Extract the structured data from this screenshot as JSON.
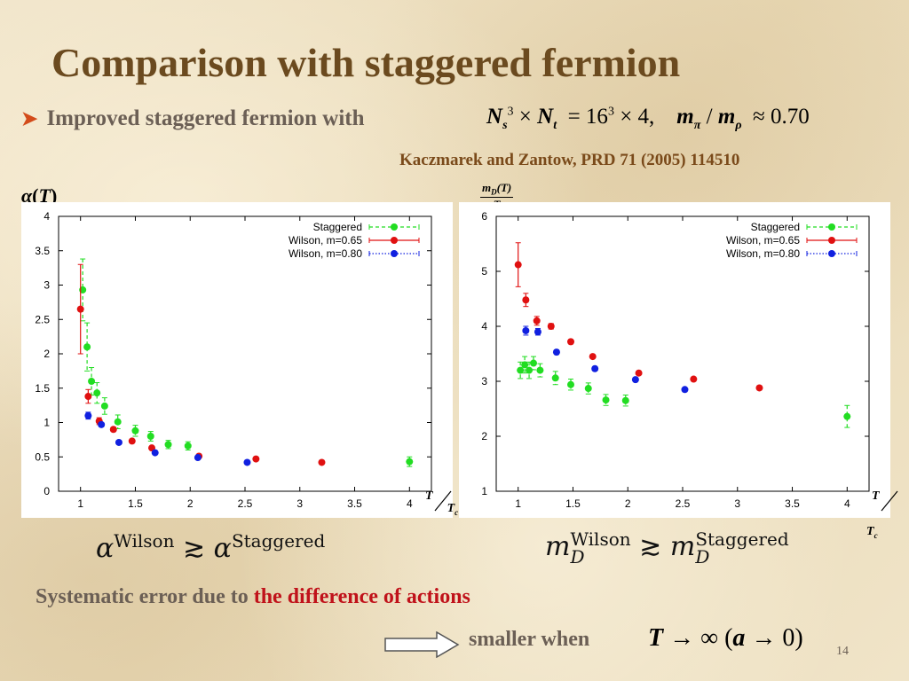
{
  "slide": {
    "title": "Comparison with staggered fermion",
    "bullet": "Improved staggered fermion with",
    "formula": "N_s^3 × N_t = 16^3 × 4,  m_π / m_ρ ≈ 0.70",
    "reference": "Kaczmarek and Zantow, PRD 71 (2005) 114510",
    "left_ylabel": "α(T)",
    "right_ylabel_num": "m_D(T)",
    "right_ylabel_den": "T",
    "xlabel_num": "T",
    "xlabel_den": "T_c",
    "inequality_left": "α^Wilson ≳ α^Staggered",
    "inequality_right": "m_D^Wilson ≳ m_D^Staggered",
    "systematic_prefix": "Systematic error due to",
    "systematic_highlight": "the difference of  actions",
    "smaller_when": "smaller when",
    "limit_expr": "T → ∞ (a → 0)",
    "page_number": "14",
    "colors": {
      "title": "#6b4a1f",
      "highlight": "#c0121a",
      "staggered": "#22dd22",
      "wilson065": "#e01010",
      "wilson080": "#1020e0"
    }
  },
  "chart_data": [
    {
      "type": "scatter",
      "title": "",
      "xlabel": "T/Tc",
      "ylabel": "α(T)",
      "xlim": [
        0.8,
        4.2
      ],
      "ylim": [
        0,
        4
      ],
      "xticks": [
        1,
        1.5,
        2,
        2.5,
        3,
        3.5,
        4
      ],
      "xtick_labels": [
        "1",
        "1.5",
        "2",
        "2.5",
        "3",
        "3.5",
        "4"
      ],
      "yticks": [
        0,
        0.5,
        1,
        1.5,
        2,
        2.5,
        3,
        3.5,
        4
      ],
      "ytick_labels": [
        "0",
        "0.5",
        "1",
        "1.5",
        "2",
        "2.5",
        "3",
        "3.5",
        "4"
      ],
      "legend_position": "top-right",
      "series": [
        {
          "name": "Staggered",
          "color": "#22dd22",
          "style": "dashed",
          "x": [
            1.02,
            1.06,
            1.1,
            1.15,
            1.22,
            1.34,
            1.5,
            1.64,
            1.8,
            1.98,
            4.0
          ],
          "y": [
            2.93,
            2.1,
            1.6,
            1.43,
            1.24,
            1.01,
            0.88,
            0.8,
            0.68,
            0.66,
            0.43
          ],
          "err": [
            0.45,
            0.35,
            0.2,
            0.15,
            0.12,
            0.1,
            0.08,
            0.07,
            0.06,
            0.06,
            0.07
          ]
        },
        {
          "name": "Wilson, m=0.65",
          "color": "#e01010",
          "style": "solid",
          "x": [
            1.0,
            1.07,
            1.17,
            1.3,
            1.47,
            1.65,
            2.08,
            2.6,
            3.2
          ],
          "y": [
            2.65,
            1.38,
            1.02,
            0.9,
            0.73,
            0.63,
            0.51,
            0.47,
            0.42
          ],
          "err": [
            0.65,
            0.1,
            0.05,
            0.03,
            0.02,
            0.02,
            0.01,
            0.01,
            0.01
          ]
        },
        {
          "name": "Wilson, m=0.80",
          "color": "#1020e0",
          "style": "dotted",
          "x": [
            1.07,
            1.19,
            1.35,
            1.68,
            2.07,
            2.52
          ],
          "y": [
            1.1,
            0.97,
            0.71,
            0.56,
            0.49,
            0.42
          ],
          "err": [
            0.05,
            0.03,
            0.02,
            0.02,
            0.01,
            0.01
          ]
        }
      ]
    },
    {
      "type": "scatter",
      "title": "",
      "xlabel": "T/Tc",
      "ylabel": "m_D(T)/T",
      "xlim": [
        0.8,
        4.2
      ],
      "ylim": [
        1,
        6
      ],
      "xticks": [
        1,
        1.5,
        2,
        2.5,
        3,
        3.5,
        4
      ],
      "xtick_labels": [
        "1",
        "1.5",
        "2",
        "2.5",
        "3",
        "3.5",
        "4"
      ],
      "yticks": [
        1,
        2,
        3,
        4,
        5,
        6
      ],
      "ytick_labels": [
        "1",
        "2",
        "3",
        "4",
        "5",
        "6"
      ],
      "legend_position": "top-right",
      "series": [
        {
          "name": "Staggered",
          "color": "#22dd22",
          "style": "dashed",
          "x": [
            1.02,
            1.06,
            1.1,
            1.14,
            1.2,
            1.34,
            1.48,
            1.64,
            1.8,
            1.98,
            4.0
          ],
          "y": [
            3.2,
            3.3,
            3.2,
            3.33,
            3.2,
            3.06,
            2.94,
            2.87,
            2.66,
            2.65,
            2.36
          ],
          "err": [
            0.15,
            0.15,
            0.15,
            0.12,
            0.12,
            0.12,
            0.1,
            0.1,
            0.1,
            0.1,
            0.2
          ]
        },
        {
          "name": "Wilson, m=0.65",
          "color": "#e01010",
          "style": "solid",
          "x": [
            1.0,
            1.07,
            1.17,
            1.3,
            1.48,
            1.68,
            2.1,
            2.6,
            3.2
          ],
          "y": [
            5.12,
            4.48,
            4.1,
            4.0,
            3.72,
            3.45,
            3.15,
            3.04,
            2.88
          ],
          "err": [
            0.4,
            0.12,
            0.08,
            0.05,
            0.04,
            0.03,
            0.02,
            0.02,
            0.02
          ]
        },
        {
          "name": "Wilson, m=0.80",
          "color": "#1020e0",
          "style": "dotted",
          "x": [
            1.07,
            1.18,
            1.35,
            1.7,
            2.07,
            2.52
          ],
          "y": [
            3.92,
            3.9,
            3.53,
            3.23,
            3.03,
            2.85
          ],
          "err": [
            0.08,
            0.06,
            0.04,
            0.03,
            0.02,
            0.02
          ]
        }
      ]
    }
  ]
}
